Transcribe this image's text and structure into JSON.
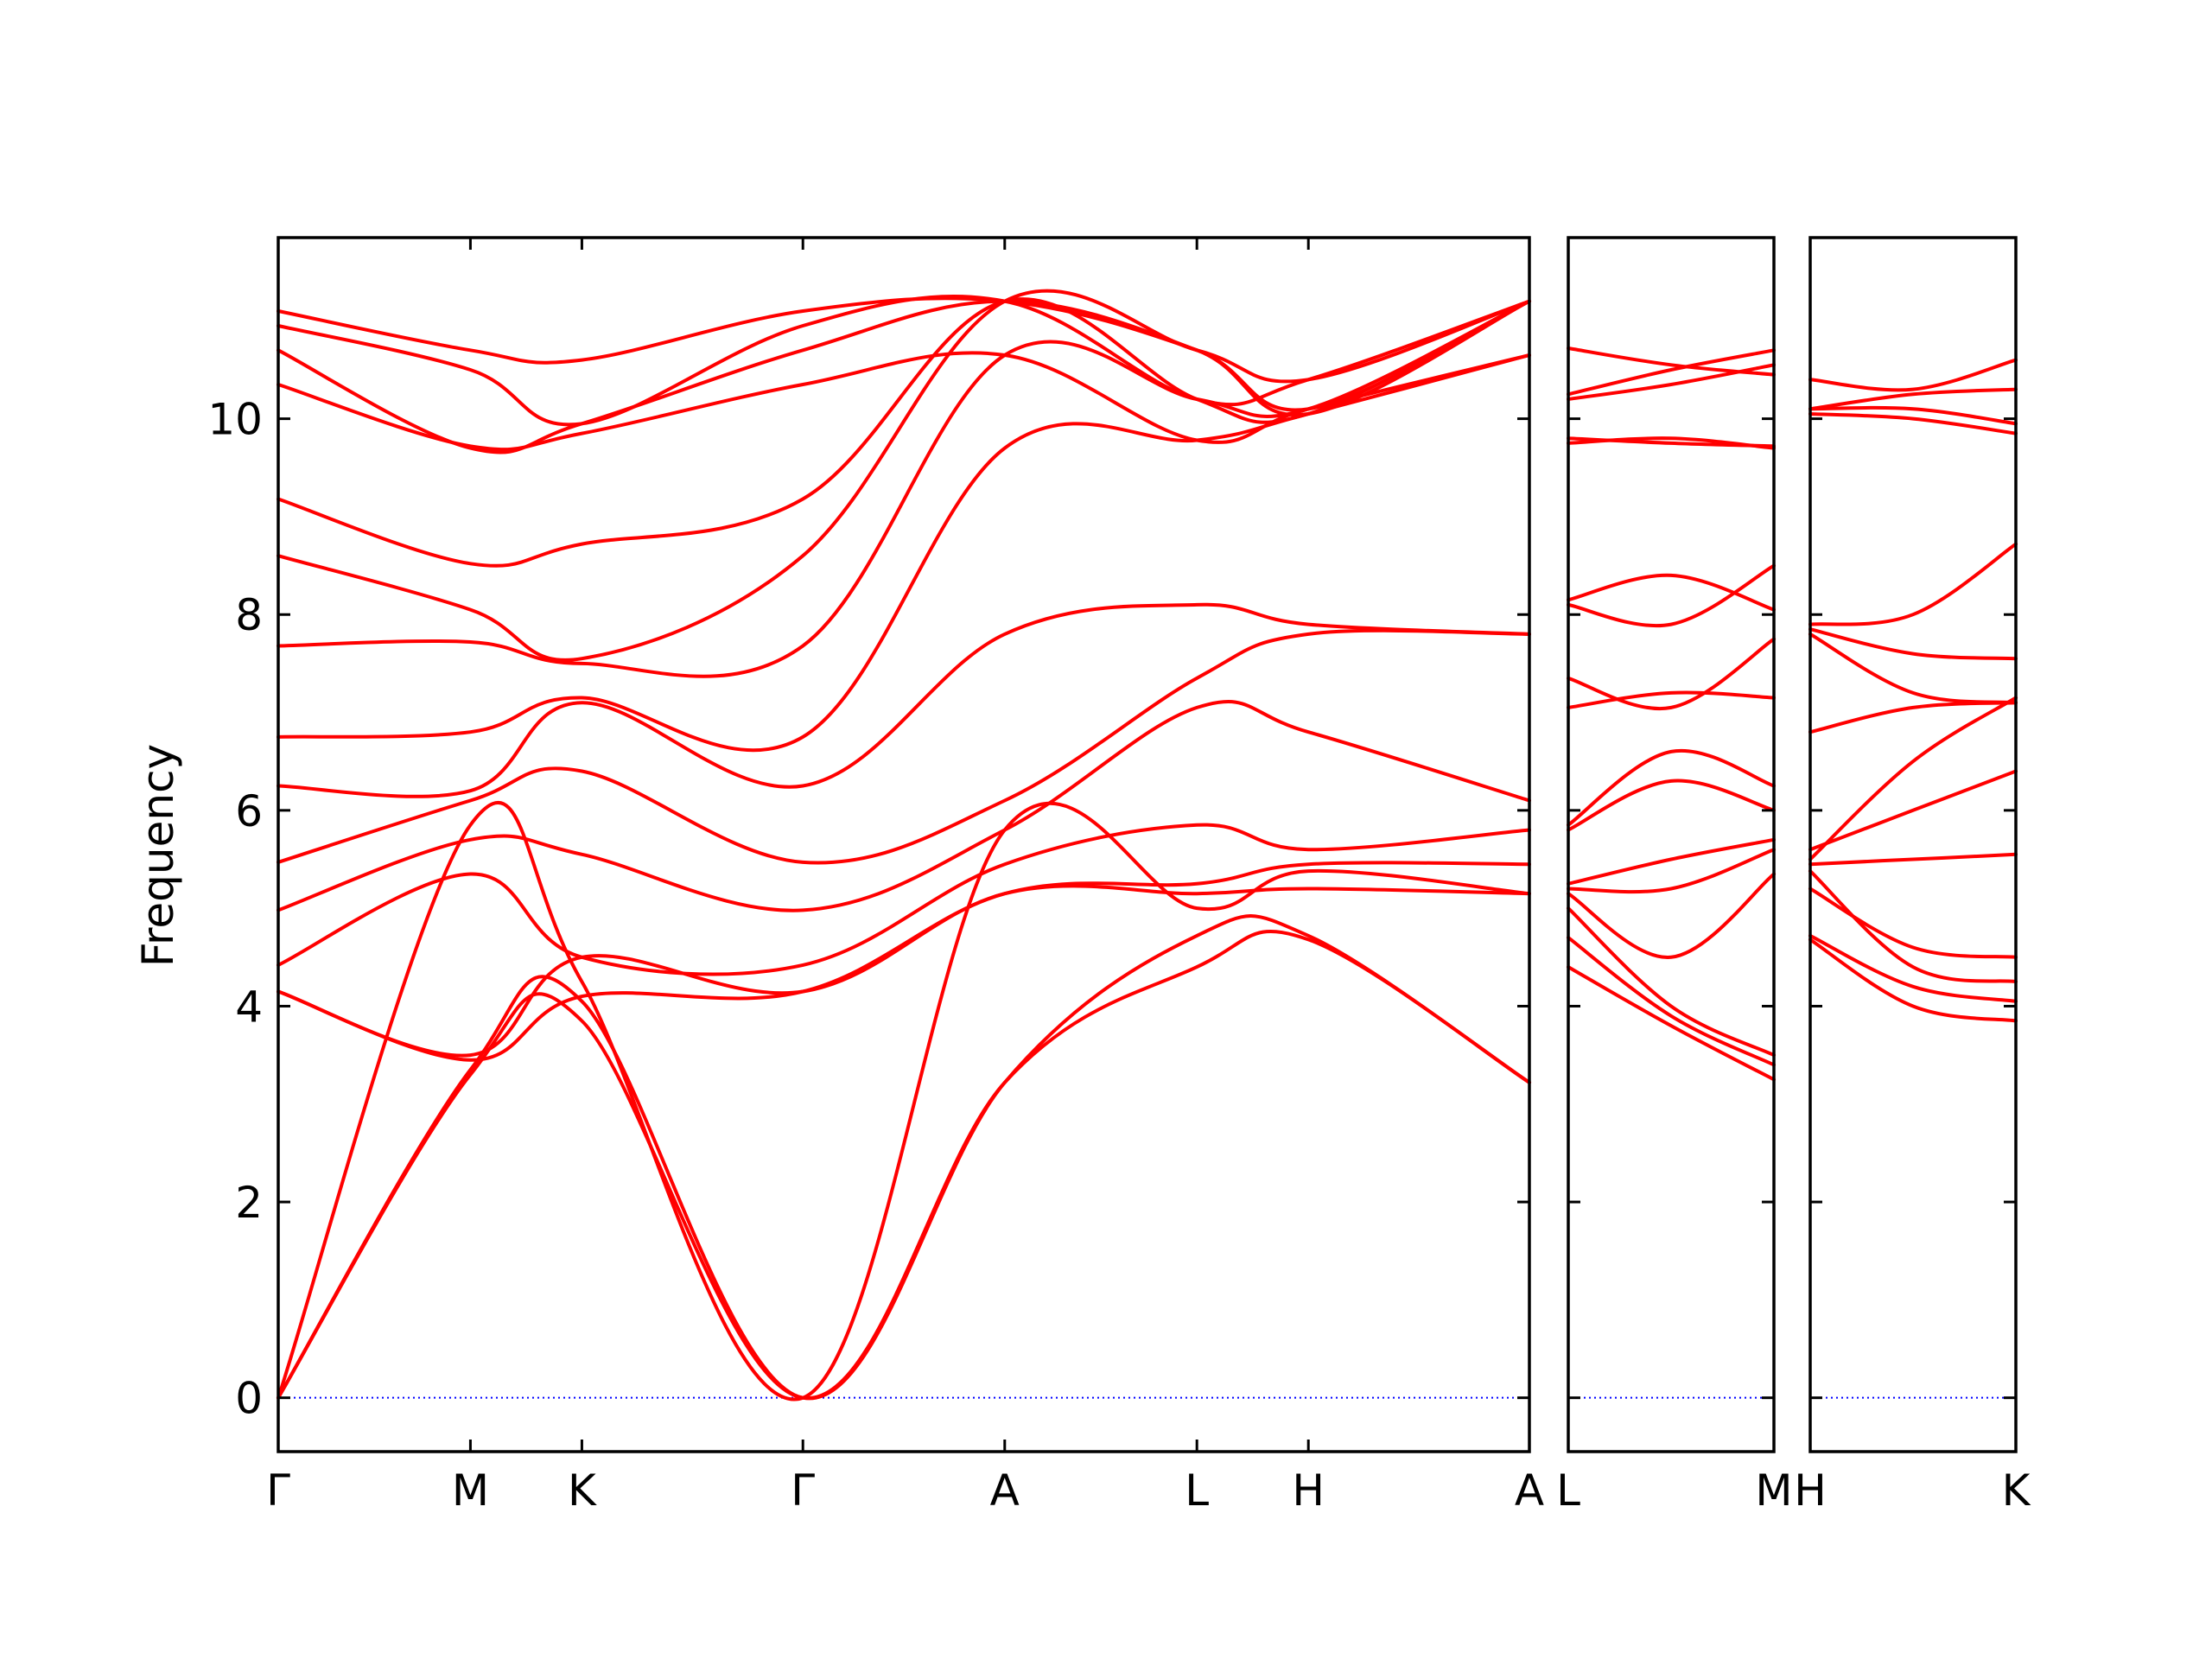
{
  "chart_data": {
    "type": "line",
    "ylabel": "Frequency",
    "ylim": [
      -0.55,
      11.85
    ],
    "yticks": [
      0,
      2,
      4,
      6,
      8,
      10
    ],
    "colors": {
      "band": "#ff0000",
      "zero": "#0000ff",
      "axes": "#000000"
    },
    "panels": [
      {
        "xticks": [
          {
            "label": "Γ",
            "x": 0
          },
          {
            "label": "M",
            "x": 1
          },
          {
            "label": "K",
            "x": 1.58
          },
          {
            "label": "Γ",
            "x": 2.73
          },
          {
            "label": "A",
            "x": 3.78
          },
          {
            "label": "L",
            "x": 4.78
          },
          {
            "label": "H",
            "x": 5.36
          },
          {
            "label": "A",
            "x": 6.51
          }
        ],
        "series": [
          {
            "x": [
              0,
              1,
              1.58,
              2.73,
              3.78,
              4.78,
              5.36,
              6.51
            ],
            "y": [
              0,
              3.3,
              3.85,
              0,
              3.22,
              4.4,
              4.68,
              3.22
            ]
          },
          {
            "x": [
              0,
              1,
              1.58,
              2.73,
              3.78,
              4.78,
              5.36,
              6.51
            ],
            "y": [
              0,
              3.35,
              4.05,
              0,
              3.22,
              4.72,
              4.72,
              3.22
            ]
          },
          {
            "x": [
              0,
              1,
              1.58,
              2.73,
              3.78,
              4.78,
              5.36,
              6.51
            ],
            "y": [
              0,
              5.85,
              4.25,
              0,
              5.8,
              5.0,
              5.38,
              5.15
            ]
          },
          {
            "x": [
              0,
              1,
              1.58,
              2.73,
              3.78,
              4.78,
              5.36,
              6.51
            ],
            "y": [
              4.15,
              3.5,
              4.5,
              4.15,
              5.15,
              5.15,
              5.2,
              5.15
            ]
          },
          {
            "x": [
              0,
              1,
              1.58,
              2.73,
              3.78,
              4.78,
              5.36,
              6.51
            ],
            "y": [
              4.15,
              3.45,
              4.1,
              4.15,
              5.15,
              5.25,
              5.45,
              5.45
            ]
          },
          {
            "x": [
              0,
              1,
              1.58,
              2.73,
              3.78,
              4.78,
              5.36,
              6.51
            ],
            "y": [
              4.42,
              5.35,
              4.5,
              4.42,
              5.45,
              5.85,
              5.6,
              5.8
            ]
          },
          {
            "x": [
              0,
              1,
              1.58,
              2.73,
              3.78,
              4.78,
              5.36,
              6.51
            ],
            "y": [
              4.98,
              5.7,
              5.55,
              4.98,
              5.8,
              7.05,
              6.8,
              6.1
            ]
          },
          {
            "x": [
              0,
              1,
              1.58,
              2.73,
              3.78,
              4.78,
              5.36,
              6.51
            ],
            "y": [
              5.47,
              6.1,
              6.4,
              5.47,
              6.1,
              7.35,
              7.8,
              7.8
            ]
          },
          {
            "x": [
              0,
              1,
              1.58,
              2.73,
              3.78,
              4.78,
              5.36,
              6.51
            ],
            "y": [
              6.25,
              6.2,
              7.1,
              6.25,
              7.8,
              8.1,
              7.9,
              7.8
            ]
          },
          {
            "x": [
              0,
              1,
              1.58,
              2.73,
              3.78,
              4.78,
              5.36,
              6.51
            ],
            "y": [
              6.75,
              6.8,
              7.15,
              6.75,
              9.7,
              9.78,
              10.05,
              10.65
            ]
          },
          {
            "x": [
              0,
              1,
              1.58,
              2.73,
              3.78,
              4.78,
              5.36,
              6.51
            ],
            "y": [
              7.68,
              7.72,
              7.5,
              7.68,
              10.65,
              10.2,
              10.1,
              11.2
            ]
          },
          {
            "x": [
              0,
              1,
              1.58,
              2.73,
              3.78,
              4.78,
              5.36,
              6.51
            ],
            "y": [
              8.6,
              8.05,
              7.55,
              8.6,
              11.2,
              10.7,
              10.4,
              11.2
            ]
          },
          {
            "x": [
              0,
              1,
              1.58,
              2.73,
              3.78,
              4.78,
              5.36,
              6.51
            ],
            "y": [
              9.18,
              8.52,
              8.72,
              9.18,
              11.2,
              10.2,
              10.05,
              11.2
            ]
          },
          {
            "x": [
              0,
              1,
              1.58,
              2.73,
              3.78,
              4.78,
              5.36,
              6.51
            ],
            "y": [
              10.35,
              9.72,
              9.85,
              10.35,
              10.65,
              9.78,
              10.1,
              10.65
            ]
          },
          {
            "x": [
              0,
              1,
              1.58,
              2.73,
              3.78,
              4.78,
              5.36,
              6.51
            ],
            "y": [
              10.7,
              9.7,
              9.95,
              10.7,
              11.2,
              10.7,
              10.05,
              11.2
            ]
          },
          {
            "x": [
              0,
              1,
              1.58,
              2.73,
              3.78,
              4.78,
              5.36,
              6.51
            ],
            "y": [
              10.95,
              10.5,
              9.95,
              10.95,
              11.2,
              10.2,
              10.4,
              11.2
            ]
          },
          {
            "x": [
              0,
              1,
              1.58,
              2.73,
              3.78,
              4.78,
              5.36,
              6.51
            ],
            "y": [
              11.1,
              10.7,
              10.6,
              11.1,
              11.2,
              10.7,
              10.1,
              11.2
            ]
          }
        ]
      },
      {
        "xticks": [
          {
            "label": "L",
            "x": 0
          },
          {
            "label": "M",
            "x": 1
          }
        ],
        "series": [
          {
            "x": [
              0,
              0.5,
              1
            ],
            "y": [
              4.4,
              3.8,
              3.25
            ]
          },
          {
            "x": [
              0,
              0.5,
              1
            ],
            "y": [
              4.7,
              3.9,
              3.4
            ]
          },
          {
            "x": [
              0,
              0.5,
              1
            ],
            "y": [
              5.0,
              4.0,
              3.5
            ]
          },
          {
            "x": [
              0,
              0.5,
              1
            ],
            "y": [
              5.15,
              4.5,
              5.35
            ]
          },
          {
            "x": [
              0,
              0.5,
              1
            ],
            "y": [
              5.2,
              5.2,
              5.6
            ]
          },
          {
            "x": [
              0,
              0.5,
              1
            ],
            "y": [
              5.25,
              5.5,
              5.7
            ]
          },
          {
            "x": [
              0,
              0.5,
              1
            ],
            "y": [
              5.8,
              6.3,
              6.0
            ]
          },
          {
            "x": [
              0,
              0.5,
              1
            ],
            "y": [
              5.85,
              6.6,
              6.25
            ]
          },
          {
            "x": [
              0,
              0.5,
              1
            ],
            "y": [
              7.05,
              7.2,
              7.15
            ]
          },
          {
            "x": [
              0,
              0.5,
              1
            ],
            "y": [
              7.35,
              7.05,
              7.75
            ]
          },
          {
            "x": [
              0,
              0.5,
              1
            ],
            "y": [
              8.1,
              7.9,
              8.5
            ]
          },
          {
            "x": [
              0,
              0.5,
              1
            ],
            "y": [
              8.15,
              8.4,
              8.05
            ]
          },
          {
            "x": [
              0,
              0.5,
              1
            ],
            "y": [
              9.75,
              9.8,
              9.7
            ]
          },
          {
            "x": [
              0,
              0.5,
              1
            ],
            "y": [
              9.8,
              9.75,
              9.72
            ]
          },
          {
            "x": [
              0,
              0.5,
              1
            ],
            "y": [
              10.2,
              10.35,
              10.55
            ]
          },
          {
            "x": [
              0,
              0.5,
              1
            ],
            "y": [
              10.25,
              10.5,
              10.7
            ]
          },
          {
            "x": [
              0,
              0.5,
              1
            ],
            "y": [
              10.72,
              10.55,
              10.45
            ]
          }
        ]
      },
      {
        "xticks": [
          {
            "label": "H",
            "x": 0
          },
          {
            "label": "K",
            "x": 1
          }
        ],
        "series": [
          {
            "x": [
              0,
              0.5,
              1
            ],
            "y": [
              4.68,
              4.0,
              3.85
            ]
          },
          {
            "x": [
              0,
              0.5,
              1
            ],
            "y": [
              4.72,
              4.2,
              4.05
            ]
          },
          {
            "x": [
              0,
              0.5,
              1
            ],
            "y": [
              5.38,
              4.4,
              4.25
            ]
          },
          {
            "x": [
              0,
              0.5,
              1
            ],
            "y": [
              5.2,
              4.6,
              4.5
            ]
          },
          {
            "x": [
              0,
              0.5,
              1
            ],
            "y": [
              5.45,
              5.5,
              5.55
            ]
          },
          {
            "x": [
              0,
              0.5,
              1
            ],
            "y": [
              5.6,
              6.0,
              6.4
            ]
          },
          {
            "x": [
              0,
              0.5,
              1
            ],
            "y": [
              6.8,
              7.05,
              7.1
            ]
          },
          {
            "x": [
              0,
              0.5,
              1
            ],
            "y": [
              5.5,
              6.5,
              7.15
            ]
          },
          {
            "x": [
              0,
              0.5,
              1
            ],
            "y": [
              7.8,
              7.2,
              7.1
            ]
          },
          {
            "x": [
              0,
              0.5,
              1
            ],
            "y": [
              7.85,
              7.6,
              7.55
            ]
          },
          {
            "x": [
              0,
              0.5,
              1
            ],
            "y": [
              7.9,
              8.0,
              8.72
            ]
          },
          {
            "x": [
              0,
              0.5,
              1
            ],
            "y": [
              10.05,
              10.0,
              9.85
            ]
          },
          {
            "x": [
              0,
              0.5,
              1
            ],
            "y": [
              10.1,
              10.1,
              9.95
            ]
          },
          {
            "x": [
              0,
              0.5,
              1
            ],
            "y": [
              10.4,
              10.3,
              10.6
            ]
          },
          {
            "x": [
              0,
              0.5,
              1
            ],
            "y": [
              10.1,
              10.25,
              10.3
            ]
          }
        ]
      }
    ]
  }
}
